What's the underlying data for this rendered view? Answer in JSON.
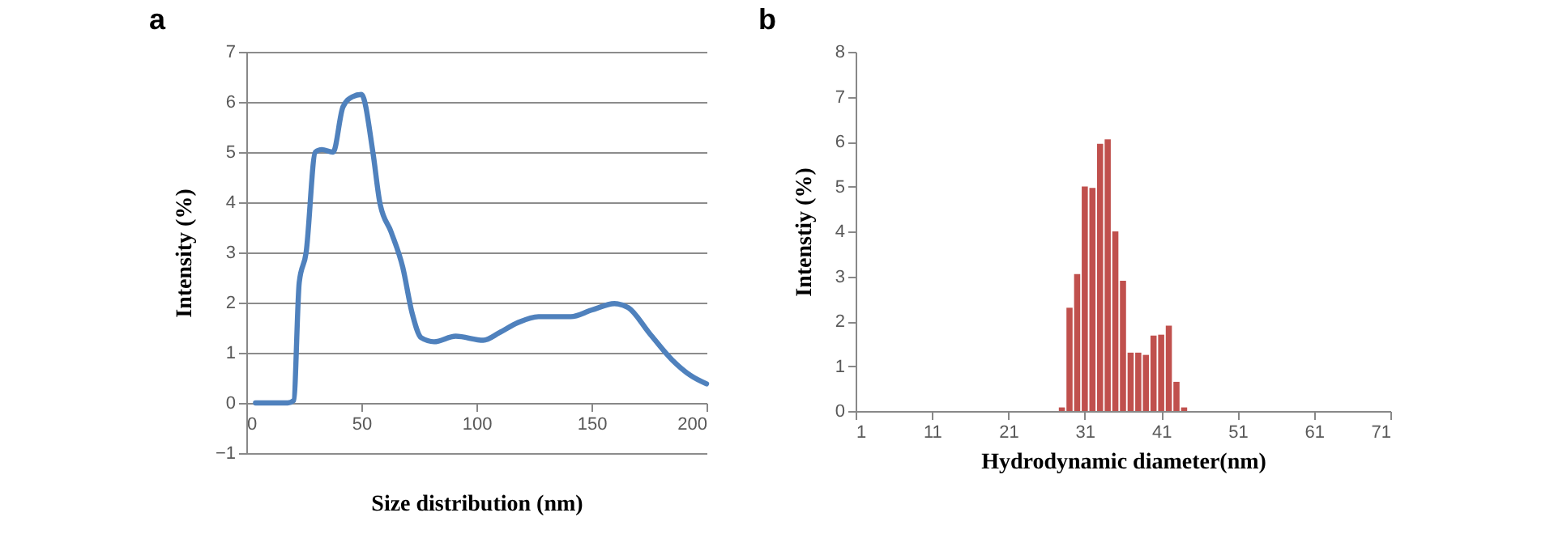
{
  "chart_data": [
    {
      "type": "line",
      "title": "a",
      "xlabel": "Size distribution (nm)",
      "ylabel": "Intensity (%)",
      "xlim": [
        0,
        200
      ],
      "xticks": [
        0,
        50,
        100,
        150,
        200
      ],
      "ylim": [
        -1,
        7
      ],
      "yticks": [
        -1,
        0,
        1,
        2,
        3,
        4,
        5,
        6,
        7
      ],
      "grid": "y",
      "x": [
        4,
        18,
        20.6,
        23,
        26,
        30,
        32.8,
        37.7,
        42,
        46,
        50,
        55,
        58,
        63,
        68,
        72,
        76,
        81.6,
        91,
        103,
        110,
        118,
        127,
        141,
        150,
        160,
        166,
        175,
        185,
        193,
        200
      ],
      "series": [
        {
          "color": "#4f81bd",
          "values": [
            0,
            0,
            0.05,
            2.4,
            3.0,
            5.0,
            5.05,
            5.0,
            5.9,
            6.1,
            6.15,
            5.0,
            4.0,
            3.4,
            2.7,
            1.8,
            1.3,
            1.22,
            1.33,
            1.25,
            1.4,
            1.6,
            1.72,
            1.72,
            1.85,
            1.98,
            1.9,
            1.4,
            0.86,
            0.55,
            0.38
          ]
        }
      ]
    },
    {
      "type": "bar",
      "title": "b",
      "xlabel": "Hydrodynamic diameter(nm)",
      "ylabel": "Intenstiy (%)",
      "xlim": [
        1,
        71
      ],
      "xticks": [
        1,
        11,
        21,
        31,
        41,
        51,
        61,
        71
      ],
      "ylim": [
        0,
        8
      ],
      "yticks": [
        0,
        1,
        2,
        3,
        4,
        5,
        6,
        7,
        8
      ],
      "grid": false,
      "x": [
        28,
        29,
        30,
        31,
        32,
        33,
        34,
        35,
        36,
        37,
        38,
        39,
        40,
        41,
        42,
        43,
        44
      ],
      "series": [
        {
          "color": "#c0504d",
          "values": [
            0.08,
            2.3,
            3.05,
            5.0,
            4.97,
            5.95,
            6.05,
            4.0,
            2.9,
            1.3,
            1.3,
            1.25,
            1.68,
            1.7,
            1.9,
            0.65,
            0.08
          ]
        }
      ]
    }
  ]
}
